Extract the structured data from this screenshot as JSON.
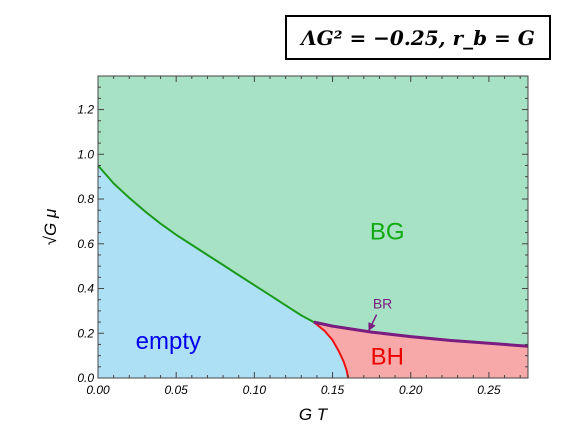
{
  "annotation": "ΛG² = −0.25,    r_b = G",
  "chart_data": {
    "type": "area",
    "title": "",
    "xlabel": "G T",
    "ylabel": "√G μ",
    "xlim": [
      0.0,
      0.275
    ],
    "ylim": [
      0.0,
      1.35
    ],
    "x_ticks": [
      "0.00",
      "0.05",
      "0.10",
      "0.15",
      "0.20",
      "0.25"
    ],
    "y_ticks": [
      "0.0",
      "0.2",
      "0.4",
      "0.6",
      "0.8",
      "1.0",
      "1.2"
    ],
    "grid": false,
    "regions": [
      {
        "name": "empty",
        "color": "#aee0f5",
        "label_color": "#0000ee"
      },
      {
        "name": "BG",
        "color": "#a8e2c4",
        "label_color": "#11aa11"
      },
      {
        "name": "BH",
        "color": "#f7a8a8",
        "label_color": "#ee0000"
      }
    ],
    "region_label_points": {
      "empty": [
        0.045,
        0.13
      ],
      "BG": [
        0.185,
        0.62
      ],
      "BH": [
        0.185,
        0.06
      ]
    },
    "series": [
      {
        "name": "",
        "color": "#1a9a1a",
        "x": [
          0.0,
          0.01,
          0.02,
          0.03,
          0.04,
          0.05,
          0.06,
          0.07,
          0.08,
          0.09,
          0.1,
          0.11,
          0.12,
          0.13,
          0.138
        ],
        "y": [
          0.95,
          0.87,
          0.805,
          0.745,
          0.69,
          0.64,
          0.595,
          0.55,
          0.505,
          0.46,
          0.415,
          0.37,
          0.325,
          0.28,
          0.25
        ]
      },
      {
        "name": "",
        "color": "#ee1111",
        "x": [
          0.138,
          0.145,
          0.15,
          0.154,
          0.157,
          0.159,
          0.16
        ],
        "y": [
          0.25,
          0.21,
          0.17,
          0.12,
          0.075,
          0.035,
          0.0
        ]
      },
      {
        "name": "BR",
        "color": "#7a1c80",
        "x": [
          0.138,
          0.15,
          0.175,
          0.2,
          0.225,
          0.25,
          0.275
        ],
        "y": [
          0.25,
          0.232,
          0.205,
          0.185,
          0.168,
          0.155,
          0.142
        ]
      }
    ],
    "arrow_annotation": {
      "text": "BR",
      "color": "#7a1c80",
      "text_at": [
        0.182,
        0.31
      ],
      "points_to": [
        0.173,
        0.21
      ]
    }
  }
}
